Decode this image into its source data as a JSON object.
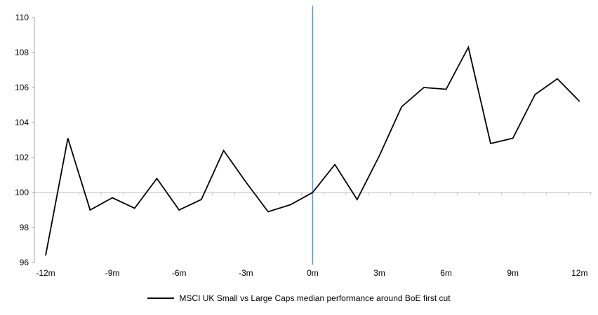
{
  "chart_data": {
    "type": "line",
    "title": "",
    "xlabel": "",
    "ylabel": "",
    "legend": "MSCI UK Small vs Large Caps median performance around BoE first cut",
    "x": [
      -12,
      -11,
      -10,
      -9,
      -8,
      -7,
      -6,
      -5,
      -4,
      -3,
      -2,
      -1,
      0,
      1,
      2,
      3,
      4,
      5,
      6,
      7,
      8,
      9,
      10,
      11,
      12
    ],
    "values": [
      96.4,
      103.1,
      99.0,
      99.7,
      99.1,
      100.8,
      99.0,
      99.6,
      102.4,
      100.6,
      98.9,
      99.3,
      100.0,
      101.6,
      99.6,
      102.1,
      104.9,
      106.0,
      105.9,
      108.3,
      102.8,
      103.1,
      105.6,
      106.5,
      105.2
    ],
    "x_tick_months": [
      -12,
      -9,
      -6,
      -3,
      0,
      3,
      6,
      9,
      12
    ],
    "x_tick_labels": [
      "-12m",
      "-9m",
      "-6m",
      "-3m",
      "0m",
      "3m",
      "6m",
      "9m",
      "12m"
    ],
    "y_ticks": [
      96,
      98,
      100,
      102,
      104,
      106,
      108,
      110
    ],
    "ylim": [
      96,
      110
    ],
    "xlim": [
      -12,
      12
    ],
    "baseline_value": 100,
    "event_line_x": 0,
    "legend_position": "bottom-center",
    "grid": "single-horizontal-gridline-at-100",
    "colors": {
      "series": "#000000",
      "event_line": "#5B9BD5",
      "gridline": "#BFBFBF",
      "axis": "#A6A6A6",
      "text": "#000000",
      "background": "#FFFFFF"
    }
  }
}
